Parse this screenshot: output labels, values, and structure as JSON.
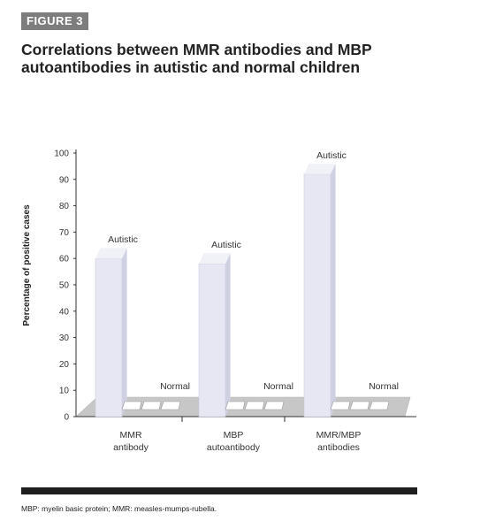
{
  "figure_tag": "FIGURE 3",
  "chart_data": {
    "type": "bar",
    "title": "Correlations between MMR antibodies and MBP autoantibodies in autistic and normal children",
    "ylabel": "Percentage of positive cases",
    "xlabel": "",
    "ylim": [
      0,
      100
    ],
    "yticks": [
      0,
      10,
      20,
      30,
      40,
      50,
      60,
      70,
      80,
      90,
      100
    ],
    "categories": [
      "MMR antibody",
      "MBP autoantibody",
      "MMR/MBP antibodies"
    ],
    "series": [
      {
        "name": "Autistic",
        "values": [
          60,
          58,
          92
        ]
      },
      {
        "name": "Normal",
        "values": [
          0,
          0,
          0
        ]
      }
    ],
    "colors": {
      "autistic": "#e6e7f3",
      "autistic_side": "#cfd0e2",
      "autistic_top": "#f1f1f8",
      "floor": "#c7c7c7",
      "axis": "#333333"
    }
  },
  "footnote": "MBP: myelin basic protein; MMR: measles-mumps-rubella."
}
